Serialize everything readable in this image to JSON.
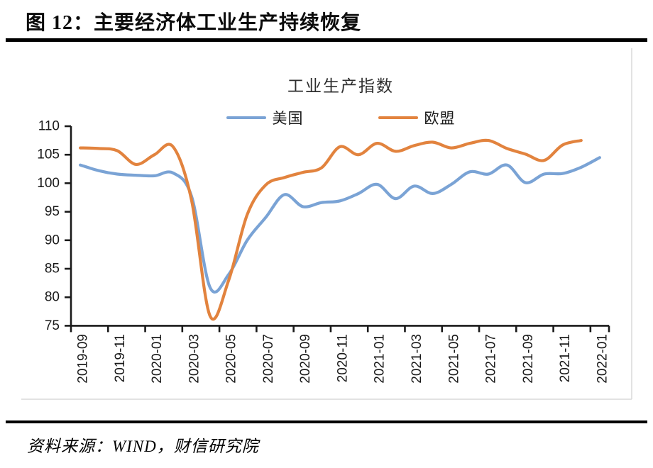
{
  "figure": {
    "title": "图 12：主要经济体工业生产持续恢复"
  },
  "source": {
    "text": "资料来源：WIND，财信研究院"
  },
  "colors": {
    "us_line": "#7AA3D5",
    "eu_line": "#E2833E",
    "axis": "#1a1a1a",
    "cell_border": "#d9d9d9"
  },
  "chart_data": {
    "type": "line",
    "title": "工业生产指数",
    "grid": false,
    "legend_position": "top",
    "ylim": [
      75,
      110
    ],
    "yticks": [
      75,
      80,
      85,
      90,
      95,
      100,
      105,
      110
    ],
    "categories": [
      "2019-09",
      "2019-10",
      "2019-11",
      "2019-12",
      "2020-01",
      "2020-02",
      "2020-03",
      "2020-04",
      "2020-05",
      "2020-06",
      "2020-07",
      "2020-08",
      "2020-09",
      "2020-10",
      "2020-11",
      "2020-12",
      "2021-01",
      "2021-02",
      "2021-03",
      "2021-04",
      "2021-05",
      "2021-06",
      "2021-07",
      "2021-08",
      "2021-09",
      "2021-10",
      "2021-11",
      "2021-12",
      "2022-01"
    ],
    "xtick_labels": [
      "2019-09",
      "2019-11",
      "2020-01",
      "2020-03",
      "2020-05",
      "2020-07",
      "2020-09",
      "2020-11",
      "2021-01",
      "2021-03",
      "2021-05",
      "2021-07",
      "2021-09",
      "2021-11",
      "2022-01"
    ],
    "series": [
      {
        "name": "美国",
        "color": "#7AA3D5",
        "values": [
          103.2,
          102.2,
          101.6,
          101.4,
          101.3,
          101.8,
          97.7,
          81.7,
          84.0,
          90.0,
          94.0,
          98.0,
          95.9,
          96.6,
          96.9,
          98.2,
          99.8,
          97.3,
          99.5,
          98.2,
          99.8,
          102.0,
          101.6,
          103.2,
          100.1,
          101.6,
          101.7,
          102.8,
          104.5
        ]
      },
      {
        "name": "欧盟",
        "color": "#E2833E",
        "values": [
          106.2,
          106.1,
          105.7,
          103.3,
          105.0,
          106.4,
          97.0,
          76.7,
          83.0,
          94.5,
          99.7,
          101.0,
          101.9,
          102.7,
          106.4,
          105.0,
          107.0,
          105.6,
          106.6,
          107.2,
          106.2,
          107.0,
          107.5,
          106.1,
          105.1,
          104.0,
          106.7,
          107.5
        ]
      }
    ]
  }
}
